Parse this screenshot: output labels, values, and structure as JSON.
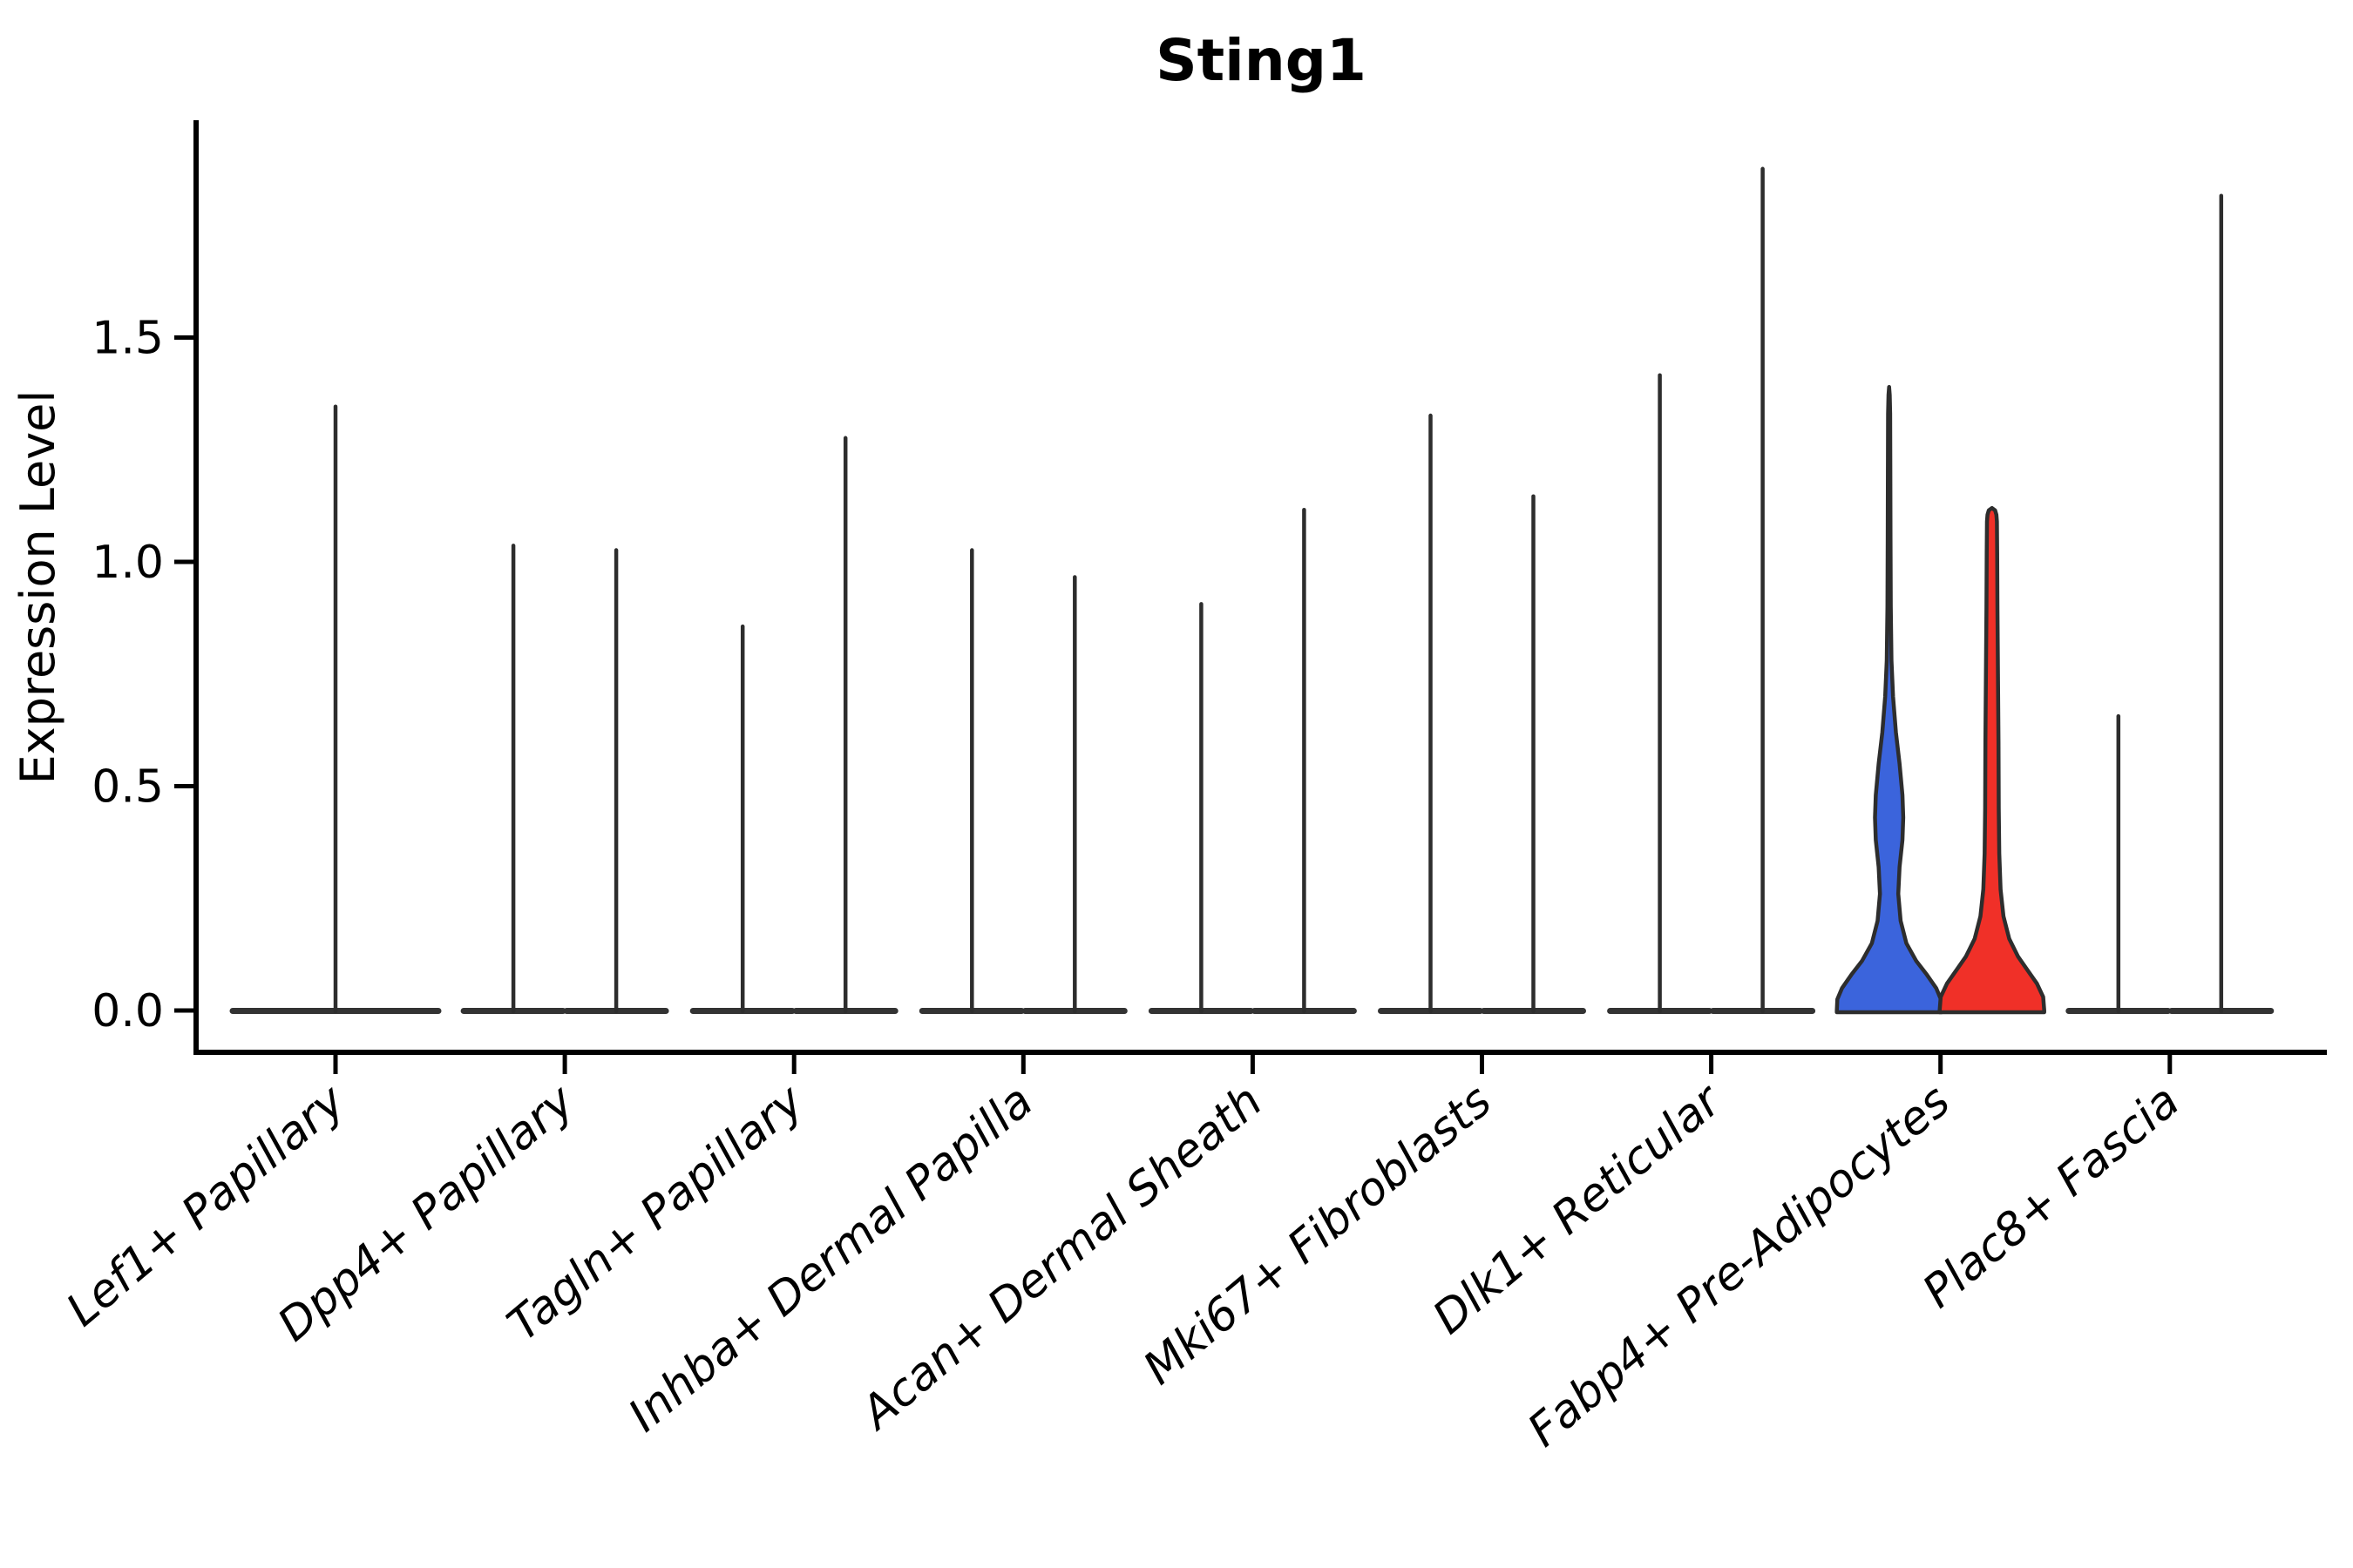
{
  "chart_data": {
    "type": "violin",
    "title": "Sting1",
    "ylabel": "Expression Level",
    "xlabel": "",
    "grid": false,
    "legend": "none",
    "ylim": [
      -0.09,
      1.98
    ],
    "yticks": [
      0.0,
      0.5,
      1.0,
      1.5
    ],
    "ytick_labels": [
      "0.0",
      "0.5",
      "1.0",
      "1.5"
    ],
    "x_tick_rotation_deg": 40,
    "colors": {
      "violin_line": "#333333",
      "violin_outline": "#2d2d2d",
      "blue_fill": "#3b64dc",
      "red_fill": "#f03028",
      "axis": "#000000"
    },
    "categories": [
      "Lef1+ Papillary",
      "Dpp4+ Papillary",
      "Tagln+ Papillary",
      "Inhba+ Dermal Papilla",
      "Acan+ Dermal Sheath",
      "Mki67+ Fibroblasts",
      "Dlk1+ Reticular",
      "Fabp4+ Pre-Adipocytes",
      "Plac8+ Fascia"
    ],
    "violins": [
      {
        "category": "Lef1+ Papillary",
        "items": [
          {
            "pos": "center",
            "max": 1.35,
            "kind": "flat"
          }
        ]
      },
      {
        "category": "Dpp4+ Papillary",
        "items": [
          {
            "pos": "left",
            "max": 1.04,
            "kind": "flat"
          },
          {
            "pos": "right",
            "max": 1.03,
            "kind": "flat"
          }
        ]
      },
      {
        "category": "Tagln+ Papillary",
        "items": [
          {
            "pos": "left",
            "max": 0.86,
            "kind": "flat"
          },
          {
            "pos": "right",
            "max": 1.28,
            "kind": "flat"
          }
        ]
      },
      {
        "category": "Inhba+ Dermal Papilla",
        "items": [
          {
            "pos": "left",
            "max": 1.03,
            "kind": "flat"
          },
          {
            "pos": "right",
            "max": 0.97,
            "kind": "flat"
          }
        ]
      },
      {
        "category": "Acan+ Dermal Sheath",
        "items": [
          {
            "pos": "left",
            "max": 0.91,
            "kind": "flat"
          },
          {
            "pos": "right",
            "max": 1.12,
            "kind": "flat"
          }
        ]
      },
      {
        "category": "Mki67+ Fibroblasts",
        "items": [
          {
            "pos": "left",
            "max": 1.33,
            "kind": "flat"
          },
          {
            "pos": "right",
            "max": 1.15,
            "kind": "flat"
          }
        ]
      },
      {
        "category": "Dlk1+ Reticular",
        "items": [
          {
            "pos": "left",
            "max": 1.42,
            "kind": "flat"
          },
          {
            "pos": "right",
            "max": 1.88,
            "kind": "flat"
          }
        ]
      },
      {
        "category": "Fabp4+ Pre-Adipocytes",
        "items": [
          {
            "pos": "left",
            "max": 1.39,
            "kind": "shaped",
            "fill": "#3b64dc",
            "profile": "blue"
          },
          {
            "pos": "right",
            "max": 1.12,
            "kind": "shaped",
            "fill": "#f03028",
            "profile": "red"
          }
        ]
      },
      {
        "category": "Plac8+ Fascia",
        "items": [
          {
            "pos": "left",
            "max": 0.66,
            "kind": "flat"
          },
          {
            "pos": "right",
            "max": 1.82,
            "kind": "flat"
          }
        ]
      }
    ],
    "profiles": {
      "blue": [
        [
          0.0,
          1.0
        ],
        [
          0.025,
          0.99
        ],
        [
          0.05,
          0.9
        ],
        [
          0.08,
          0.72
        ],
        [
          0.11,
          0.52
        ],
        [
          0.15,
          0.33
        ],
        [
          0.2,
          0.22
        ],
        [
          0.26,
          0.175
        ],
        [
          0.32,
          0.2
        ],
        [
          0.38,
          0.255
        ],
        [
          0.43,
          0.27
        ],
        [
          0.48,
          0.255
        ],
        [
          0.55,
          0.2
        ],
        [
          0.62,
          0.13
        ],
        [
          0.7,
          0.075
        ],
        [
          0.78,
          0.045
        ],
        [
          0.9,
          0.032
        ],
        [
          1.05,
          0.027
        ],
        [
          1.2,
          0.024
        ],
        [
          1.33,
          0.02
        ],
        [
          1.372,
          0.012
        ],
        [
          1.39,
          0.0
        ]
      ],
      "red": [
        [
          0.0,
          1.0
        ],
        [
          0.03,
          0.98
        ],
        [
          0.06,
          0.86
        ],
        [
          0.09,
          0.68
        ],
        [
          0.12,
          0.5
        ],
        [
          0.16,
          0.33
        ],
        [
          0.21,
          0.22
        ],
        [
          0.27,
          0.165
        ],
        [
          0.35,
          0.14
        ],
        [
          0.45,
          0.13
        ],
        [
          0.6,
          0.125
        ],
        [
          0.75,
          0.115
        ],
        [
          0.9,
          0.105
        ],
        [
          1.02,
          0.1
        ],
        [
          1.09,
          0.095
        ],
        [
          1.105,
          0.085
        ],
        [
          1.115,
          0.06
        ],
        [
          1.12,
          0.0
        ]
      ]
    }
  }
}
